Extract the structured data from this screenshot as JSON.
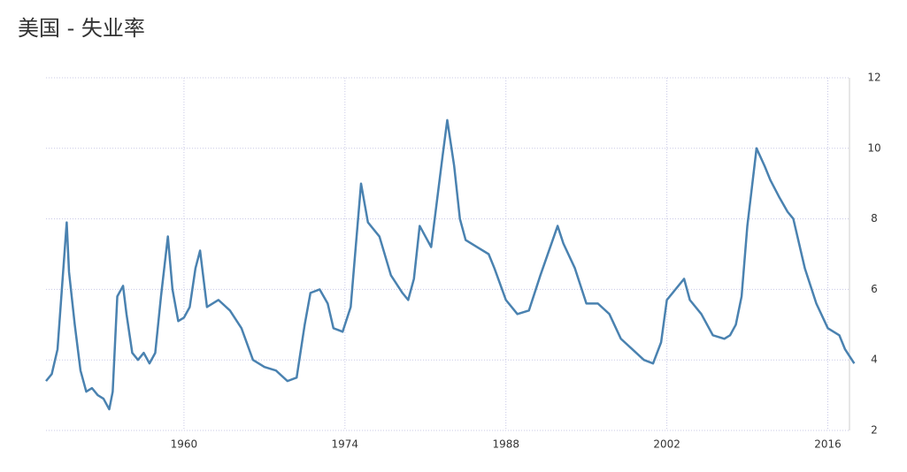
{
  "chart_data": {
    "type": "line",
    "title": "美国 - 失业率",
    "x": [
      1948.0,
      1948.5,
      1949.0,
      1949.8,
      1950.0,
      1950.5,
      1951.0,
      1951.5,
      1952.0,
      1952.5,
      1953.0,
      1953.5,
      1953.8,
      1954.2,
      1954.7,
      1955.0,
      1955.5,
      1956.0,
      1956.5,
      1957.0,
      1957.5,
      1958.0,
      1958.6,
      1959.0,
      1959.5,
      1960.0,
      1960.5,
      1961.0,
      1961.4,
      1962.0,
      1963.0,
      1964.0,
      1965.0,
      1966.0,
      1967.0,
      1968.0,
      1969.0,
      1969.8,
      1970.5,
      1971.0,
      1971.8,
      1972.5,
      1973.0,
      1973.8,
      1974.5,
      1975.4,
      1976.0,
      1977.0,
      1978.0,
      1979.0,
      1979.5,
      1980.0,
      1980.5,
      1981.0,
      1981.5,
      1982.5,
      1982.9,
      1983.5,
      1984.0,
      1984.5,
      1985.5,
      1986.5,
      1987.0,
      1988.0,
      1989.0,
      1990.0,
      1991.0,
      1992.5,
      1993.0,
      1994.0,
      1995.0,
      1996.0,
      1997.0,
      1998.0,
      1999.0,
      2000.0,
      2000.8,
      2001.5,
      2002.0,
      2003.5,
      2004.0,
      2005.0,
      2006.0,
      2007.0,
      2007.5,
      2008.0,
      2008.5,
      2009.0,
      2009.8,
      2010.5,
      2011.0,
      2011.8,
      2012.5,
      2013.0,
      2014.0,
      2015.0,
      2016.0,
      2017.0,
      2017.5,
      2018.3
    ],
    "series": [
      {
        "color": "#4a82b0",
        "values": [
          3.4,
          3.6,
          4.3,
          7.9,
          6.5,
          5.0,
          3.7,
          3.1,
          3.2,
          3.0,
          2.9,
          2.6,
          3.1,
          5.8,
          6.1,
          5.3,
          4.2,
          4.0,
          4.2,
          3.9,
          4.2,
          5.8,
          7.5,
          6.0,
          5.1,
          5.2,
          5.5,
          6.6,
          7.1,
          5.5,
          5.7,
          5.4,
          4.9,
          4.0,
          3.8,
          3.7,
          3.4,
          3.5,
          5.0,
          5.9,
          6.0,
          5.6,
          4.9,
          4.8,
          5.5,
          9.0,
          7.9,
          7.5,
          6.4,
          5.9,
          5.7,
          6.3,
          7.8,
          7.5,
          7.2,
          9.8,
          10.8,
          9.5,
          8.0,
          7.4,
          7.2,
          7.0,
          6.6,
          5.7,
          5.3,
          5.4,
          6.4,
          7.8,
          7.3,
          6.6,
          5.6,
          5.6,
          5.3,
          4.6,
          4.3,
          4.0,
          3.9,
          4.5,
          5.7,
          6.3,
          5.7,
          5.3,
          4.7,
          4.6,
          4.7,
          5.0,
          5.8,
          7.8,
          10.0,
          9.5,
          9.1,
          8.6,
          8.2,
          8.0,
          6.6,
          5.6,
          4.9,
          4.7,
          4.3,
          3.9
        ]
      }
    ],
    "xlim": [
      1948,
      2018.5
    ],
    "xticks": [
      1960,
      1974,
      1988,
      2002,
      2016
    ],
    "ylim": [
      2,
      12
    ],
    "yticks": [
      2,
      4,
      6,
      8,
      10,
      12
    ],
    "grid": true
  }
}
